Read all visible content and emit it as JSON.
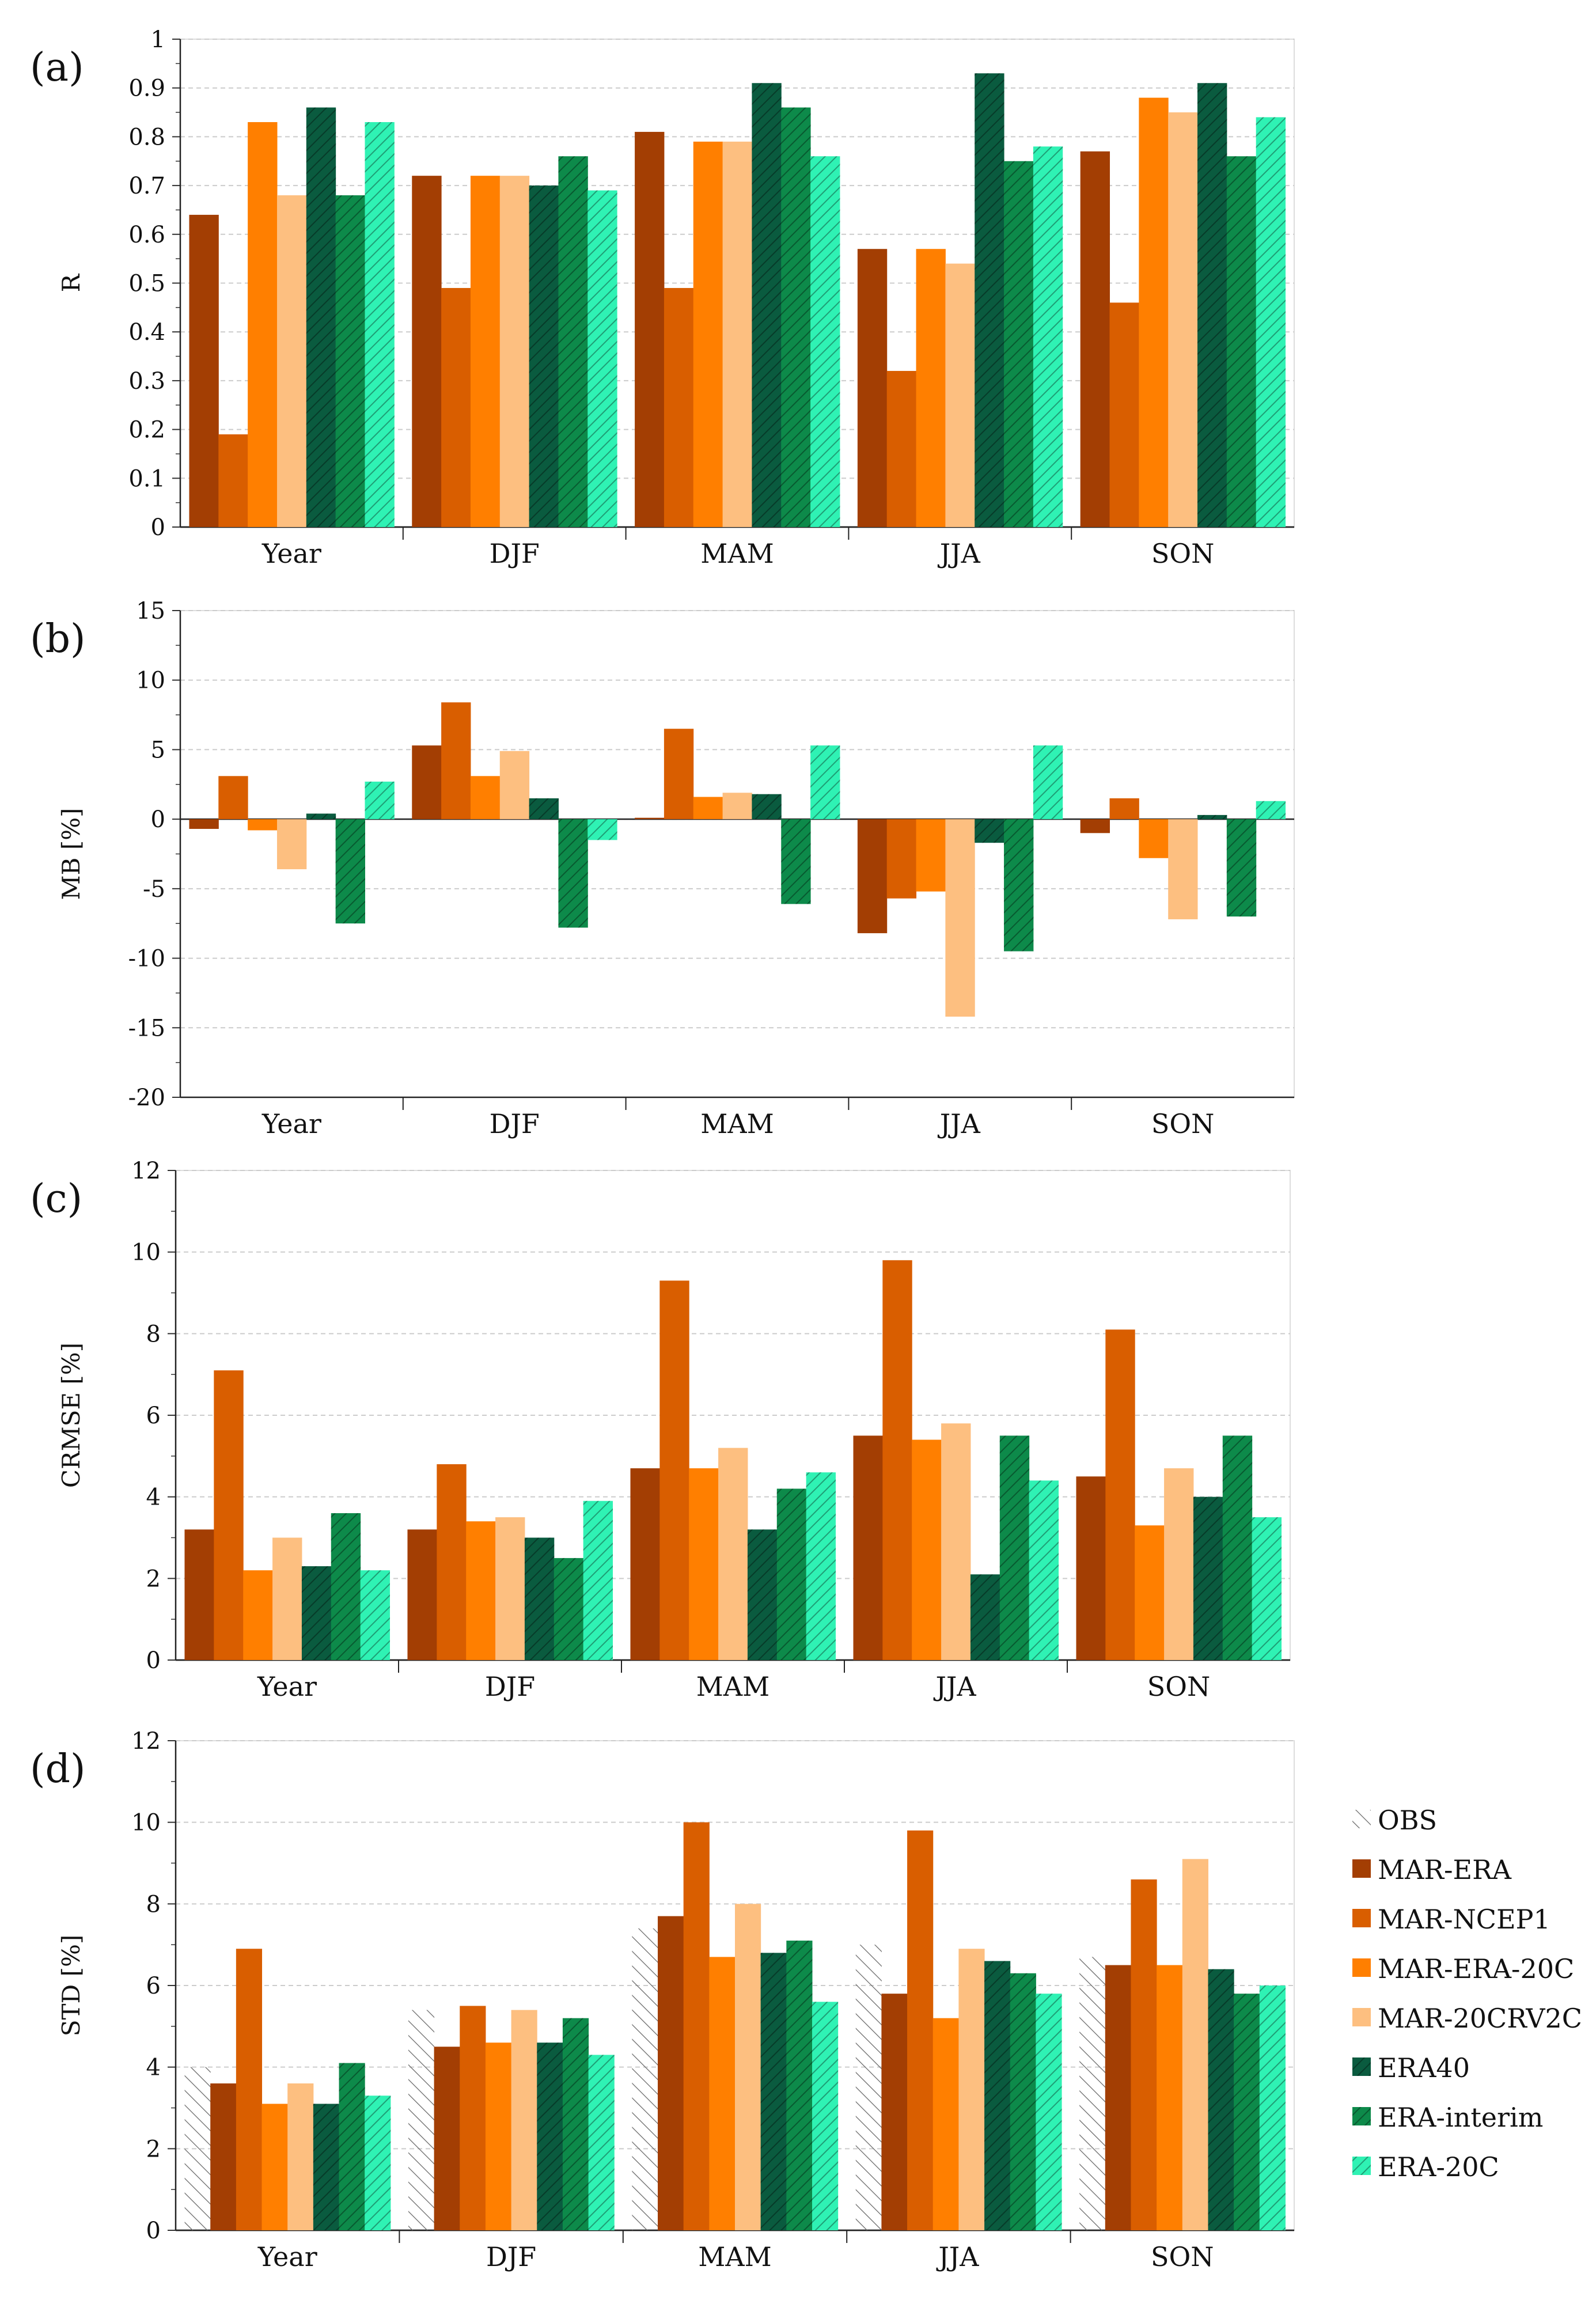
{
  "chart_data": [
    {
      "type": "bar",
      "panel_label": "(a)",
      "ylabel": "R",
      "ylim": [
        0,
        1
      ],
      "yticks": [
        "0",
        "0.1",
        "0.2",
        "0.3",
        "0.4",
        "0.5",
        "0.6",
        "0.7",
        "0.8",
        "0.9",
        "1"
      ],
      "ytick_values": [
        0,
        0.1,
        0.2,
        0.3,
        0.4,
        0.5,
        0.6,
        0.7,
        0.8,
        0.9,
        1
      ],
      "categories": [
        "Year",
        "DJF",
        "MAM",
        "JJA",
        "SON"
      ],
      "series": [
        {
          "name": "MAR-ERA",
          "values": [
            0.64,
            0.72,
            0.81,
            0.57,
            0.77
          ]
        },
        {
          "name": "MAR-NCEP1",
          "values": [
            0.19,
            0.49,
            0.49,
            0.32,
            0.46
          ]
        },
        {
          "name": "MAR-ERA-20C",
          "values": [
            0.83,
            0.72,
            0.79,
            0.57,
            0.88
          ]
        },
        {
          "name": "MAR-20CRV2C",
          "values": [
            0.68,
            0.72,
            0.79,
            0.54,
            0.85
          ]
        },
        {
          "name": "ERA40",
          "values": [
            0.86,
            0.7,
            0.91,
            0.93,
            0.91
          ]
        },
        {
          "name": "ERA-interim",
          "values": [
            0.68,
            0.76,
            0.86,
            0.75,
            0.76
          ]
        },
        {
          "name": "ERA-20C",
          "values": [
            0.83,
            0.69,
            0.76,
            0.78,
            0.84
          ]
        }
      ]
    },
    {
      "type": "bar",
      "panel_label": "(b)",
      "ylabel": "MB [%]",
      "ylim": [
        -20,
        15
      ],
      "yticks": [
        "-20",
        "-15",
        "-10",
        "-5",
        "0",
        "5",
        "10",
        "15"
      ],
      "ytick_values": [
        -20,
        -15,
        -10,
        -5,
        0,
        5,
        10,
        15
      ],
      "categories": [
        "Year",
        "DJF",
        "MAM",
        "JJA",
        "SON"
      ],
      "series": [
        {
          "name": "MAR-ERA",
          "values": [
            -0.7,
            5.3,
            0.1,
            -8.2,
            -1.0
          ]
        },
        {
          "name": "MAR-NCEP1",
          "values": [
            3.1,
            8.4,
            6.5,
            -5.7,
            1.5
          ]
        },
        {
          "name": "MAR-ERA-20C",
          "values": [
            -0.8,
            3.1,
            1.6,
            -5.2,
            -2.8
          ]
        },
        {
          "name": "MAR-20CRV2C",
          "values": [
            -3.6,
            4.9,
            1.9,
            -14.2,
            -7.2
          ]
        },
        {
          "name": "ERA40",
          "values": [
            0.4,
            1.5,
            1.8,
            -1.7,
            0.3
          ]
        },
        {
          "name": "ERA-interim",
          "values": [
            -7.5,
            -7.8,
            -6.1,
            -9.5,
            -7.0
          ]
        },
        {
          "name": "ERA-20C",
          "values": [
            2.7,
            -1.5,
            5.3,
            5.3,
            1.3
          ]
        }
      ]
    },
    {
      "type": "bar",
      "panel_label": "(c)",
      "ylabel": "CRMSE [%]",
      "ylim": [
        0,
        12
      ],
      "yticks": [
        "0",
        "2",
        "4",
        "6",
        "8",
        "10",
        "12"
      ],
      "ytick_values": [
        0,
        2,
        4,
        6,
        8,
        10,
        12
      ],
      "categories": [
        "Year",
        "DJF",
        "MAM",
        "JJA",
        "SON"
      ],
      "series": [
        {
          "name": "MAR-ERA",
          "values": [
            3.2,
            3.2,
            4.7,
            5.5,
            4.5
          ]
        },
        {
          "name": "MAR-NCEP1",
          "values": [
            7.1,
            4.8,
            9.3,
            9.8,
            8.1
          ]
        },
        {
          "name": "MAR-ERA-20C",
          "values": [
            2.2,
            3.4,
            4.7,
            5.4,
            3.3
          ]
        },
        {
          "name": "MAR-20CRV2C",
          "values": [
            3.0,
            3.5,
            5.2,
            5.8,
            4.7
          ]
        },
        {
          "name": "ERA40",
          "values": [
            2.3,
            3.0,
            3.2,
            2.1,
            4.0
          ]
        },
        {
          "name": "ERA-interim",
          "values": [
            3.6,
            2.5,
            4.2,
            5.5,
            5.5
          ]
        },
        {
          "name": "ERA-20C",
          "values": [
            2.2,
            3.9,
            4.6,
            4.4,
            3.5
          ]
        }
      ]
    },
    {
      "type": "bar",
      "panel_label": "(d)",
      "ylabel": "STD [%]",
      "ylim": [
        0,
        12
      ],
      "yticks": [
        "0",
        "2",
        "4",
        "6",
        "8",
        "10",
        "12"
      ],
      "ytick_values": [
        0,
        2,
        4,
        6,
        8,
        10,
        12
      ],
      "categories": [
        "Year",
        "DJF",
        "MAM",
        "JJA",
        "SON"
      ],
      "series": [
        {
          "name": "OBS",
          "values": [
            4.0,
            5.4,
            7.4,
            7.0,
            6.7
          ]
        },
        {
          "name": "MAR-ERA",
          "values": [
            3.6,
            4.5,
            7.7,
            5.8,
            6.5
          ]
        },
        {
          "name": "MAR-NCEP1",
          "values": [
            6.9,
            5.5,
            10.0,
            9.8,
            8.6
          ]
        },
        {
          "name": "MAR-ERA-20C",
          "values": [
            3.1,
            4.6,
            6.7,
            5.2,
            6.5
          ]
        },
        {
          "name": "MAR-20CRV2C",
          "values": [
            3.6,
            5.4,
            8.0,
            6.9,
            9.1
          ]
        },
        {
          "name": "ERA40",
          "values": [
            3.1,
            4.6,
            6.8,
            6.6,
            6.4
          ]
        },
        {
          "name": "ERA-interim",
          "values": [
            4.1,
            5.2,
            7.1,
            6.3,
            5.8
          ]
        },
        {
          "name": "ERA-20C",
          "values": [
            3.3,
            4.3,
            5.6,
            5.8,
            6.0
          ]
        }
      ]
    }
  ],
  "legend": {
    "items": [
      {
        "name": "OBS",
        "color": "#ffffff",
        "pattern": "obs"
      },
      {
        "name": "MAR-ERA",
        "color": "#a33e03",
        "pattern": "none"
      },
      {
        "name": "MAR-NCEP1",
        "color": "#d95e00",
        "pattern": "none"
      },
      {
        "name": "MAR-ERA-20C",
        "color": "#ff7f00",
        "pattern": "none"
      },
      {
        "name": "MAR-20CRV2C",
        "color": "#fdbf80",
        "pattern": "none"
      },
      {
        "name": "ERA40",
        "color": "#0a5b3f",
        "pattern": "hatch"
      },
      {
        "name": "ERA-interim",
        "color": "#0d8a4a",
        "pattern": "hatch"
      },
      {
        "name": "ERA-20C",
        "color": "#2ff2b4",
        "pattern": "hatch"
      }
    ]
  }
}
